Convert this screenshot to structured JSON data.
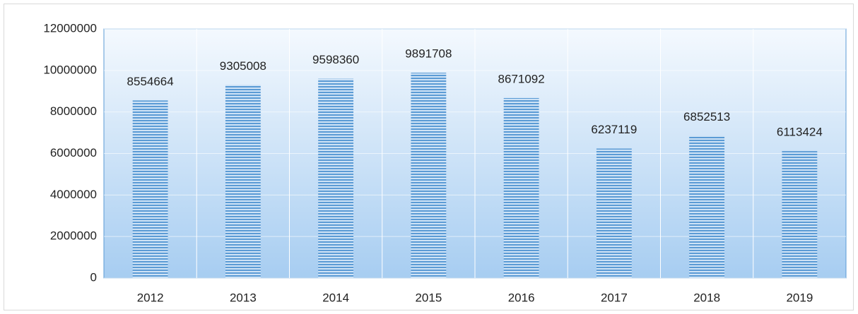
{
  "chart_data": {
    "type": "bar",
    "categories": [
      "2012",
      "2013",
      "2014",
      "2015",
      "2016",
      "2017",
      "2018",
      "2019"
    ],
    "values": [
      8554664,
      9305008,
      9598360,
      9891708,
      8671092,
      6237119,
      6852513,
      6113424
    ],
    "color": "#5b9bd5",
    "ylim": [
      0,
      12000000
    ],
    "yticks": [
      0,
      2000000,
      4000000,
      6000000,
      8000000,
      10000000,
      12000000
    ],
    "grid": true
  }
}
